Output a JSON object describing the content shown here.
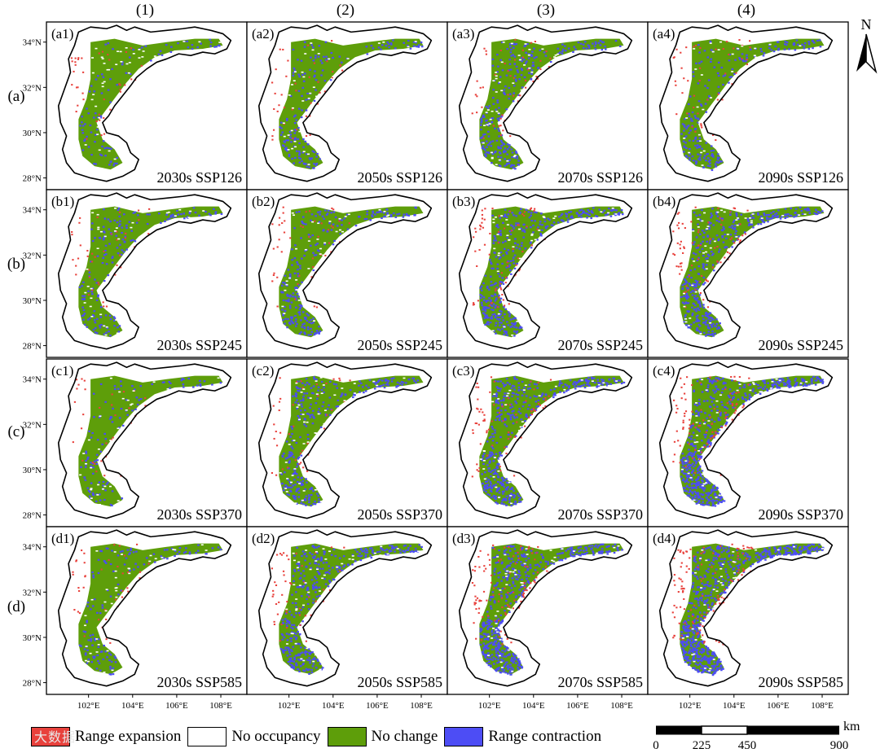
{
  "columns": [
    "(1)",
    "(2)",
    "(3)",
    "(4)"
  ],
  "rows": [
    "(a)",
    "(b)",
    "(c)",
    "(d)"
  ],
  "y_ticks": [
    "34°N",
    "32°N",
    "30°N",
    "28°N"
  ],
  "x_ticks": [
    "102°E",
    "104°E",
    "106°E",
    "108°E"
  ],
  "panels": [
    {
      "id": "(a1)",
      "caption": "2030s SSP126",
      "contraction": 0.1,
      "expansion": 0.1
    },
    {
      "id": "(a2)",
      "caption": "2050s SSP126",
      "contraction": 0.18,
      "expansion": 0.1
    },
    {
      "id": "(a3)",
      "caption": "2070s SSP126",
      "contraction": 0.28,
      "expansion": 0.12
    },
    {
      "id": "(a4)",
      "caption": "2090s SSP126",
      "contraction": 0.22,
      "expansion": 0.12
    },
    {
      "id": "(b1)",
      "caption": "2030s SSP245",
      "contraction": 0.18,
      "expansion": 0.1
    },
    {
      "id": "(b2)",
      "caption": "2050s SSP245",
      "contraction": 0.25,
      "expansion": 0.12
    },
    {
      "id": "(b3)",
      "caption": "2070s SSP245",
      "contraction": 0.38,
      "expansion": 0.18
    },
    {
      "id": "(b4)",
      "caption": "2090s SSP245",
      "contraction": 0.4,
      "expansion": 0.2
    },
    {
      "id": "(c1)",
      "caption": "2030s SSP370",
      "contraction": 0.12,
      "expansion": 0.08
    },
    {
      "id": "(c2)",
      "caption": "2050s SSP370",
      "contraction": 0.3,
      "expansion": 0.1
    },
    {
      "id": "(c3)",
      "caption": "2070s SSP370",
      "contraction": 0.45,
      "expansion": 0.18
    },
    {
      "id": "(c4)",
      "caption": "2090s SSP370",
      "contraction": 0.58,
      "expansion": 0.24
    },
    {
      "id": "(d1)",
      "caption": "2030s SSP585",
      "contraction": 0.14,
      "expansion": 0.1
    },
    {
      "id": "(d2)",
      "caption": "2050s SSP585",
      "contraction": 0.38,
      "expansion": 0.12
    },
    {
      "id": "(d3)",
      "caption": "2070s SSP585",
      "contraction": 0.55,
      "expansion": 0.26
    },
    {
      "id": "(d4)",
      "caption": "2090s SSP585",
      "contraction": 0.7,
      "expansion": 0.3
    }
  ],
  "legend": [
    {
      "label": "Range expansion",
      "color": "#e8413c"
    },
    {
      "label": "No occupancy",
      "color": "#ffffff"
    },
    {
      "label": "No change",
      "color": "#5e9e0a"
    },
    {
      "label": "Range contraction",
      "color": "#4d4df5"
    }
  ],
  "scale": {
    "ticks": [
      "0",
      "225",
      "450",
      "900"
    ],
    "unit": "km"
  },
  "north": {
    "label": "N"
  },
  "colors": {
    "expansion": "#e8413c",
    "no_change": "#5e9e0a",
    "contraction": "#4d4df5",
    "border": "#000000"
  }
}
